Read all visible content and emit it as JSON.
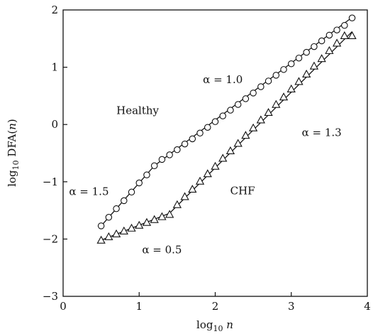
{
  "chart_data": {
    "type": "scatter",
    "xlabel": {
      "base": "log",
      "sub": "10",
      "var": "n"
    },
    "ylabel": {
      "base": "log",
      "sub": "10",
      "mid": " DFA(",
      "var": "n",
      "end": ")"
    },
    "xlim": [
      0,
      4
    ],
    "ylim": [
      -3,
      2
    ],
    "xticks": [
      {
        "v": 0,
        "label": "0"
      },
      {
        "v": 1,
        "label": "1"
      },
      {
        "v": 2,
        "label": "2"
      },
      {
        "v": 3,
        "label": "3"
      },
      {
        "v": 4,
        "label": "4"
      }
    ],
    "yticks": [
      {
        "v": -3,
        "label": "−3"
      },
      {
        "v": -2,
        "label": "−2"
      },
      {
        "v": -1,
        "label": "−1"
      },
      {
        "v": 0,
        "label": "0"
      },
      {
        "v": 1,
        "label": "1"
      },
      {
        "v": 2,
        "label": "2"
      }
    ],
    "series": [
      {
        "marker": "circle",
        "x": [
          0.5,
          0.6,
          0.7,
          0.8,
          0.9,
          1.0,
          1.1,
          1.2,
          1.3,
          1.4,
          1.5,
          1.6,
          1.7,
          1.8,
          1.9,
          2.0,
          2.1,
          2.2,
          2.3,
          2.4,
          2.5,
          2.6,
          2.7,
          2.8,
          2.9,
          3.0,
          3.1,
          3.2,
          3.3,
          3.4,
          3.5,
          3.6,
          3.7,
          3.8
        ],
        "y": [
          -1.77,
          -1.62,
          -1.47,
          -1.33,
          -1.18,
          -1.02,
          -0.88,
          -0.72,
          -0.61,
          -0.53,
          -0.44,
          -0.34,
          -0.25,
          -0.15,
          -0.05,
          0.05,
          0.15,
          0.25,
          0.35,
          0.45,
          0.55,
          0.66,
          0.76,
          0.86,
          0.96,
          1.06,
          1.16,
          1.26,
          1.36,
          1.46,
          1.56,
          1.65,
          1.73,
          1.86
        ],
        "fit": [
          [
            0.5,
            -1.77
          ],
          [
            1.2,
            -0.72
          ],
          [
            3.8,
            1.87
          ]
        ]
      },
      {
        "marker": "triangle",
        "x": [
          0.5,
          0.6,
          0.7,
          0.8,
          0.9,
          1.0,
          1.1,
          1.2,
          1.3,
          1.4,
          1.5,
          1.6,
          1.7,
          1.8,
          1.9,
          2.0,
          2.1,
          2.2,
          2.3,
          2.4,
          2.5,
          2.6,
          2.7,
          2.8,
          2.9,
          3.0,
          3.1,
          3.2,
          3.3,
          3.4,
          3.5,
          3.6,
          3.7,
          3.8
        ],
        "y": [
          -2.02,
          -1.96,
          -1.91,
          -1.86,
          -1.81,
          -1.76,
          -1.71,
          -1.66,
          -1.61,
          -1.57,
          -1.4,
          -1.26,
          -1.13,
          -0.99,
          -0.86,
          -0.73,
          -0.59,
          -0.46,
          -0.33,
          -0.19,
          -0.06,
          0.08,
          0.21,
          0.35,
          0.48,
          0.62,
          0.75,
          0.88,
          1.02,
          1.15,
          1.29,
          1.42,
          1.55,
          1.55
        ],
        "fit": [
          [
            0.5,
            -2.02
          ],
          [
            1.4,
            -1.55
          ],
          [
            3.8,
            1.62
          ]
        ]
      }
    ],
    "annotations": [
      {
        "text": "Healthy",
        "x": 0.98,
        "y": 0.18
      },
      {
        "text": "α = 1.0",
        "x": 2.1,
        "y": 0.72
      },
      {
        "text": "α = 1.5",
        "x": 0.34,
        "y": -1.23
      },
      {
        "text": "CHF",
        "x": 2.36,
        "y": -1.22
      },
      {
        "text": "α = 1.3",
        "x": 3.4,
        "y": -0.2
      },
      {
        "text": "α = 0.5",
        "x": 1.3,
        "y": -2.25
      }
    ]
  }
}
